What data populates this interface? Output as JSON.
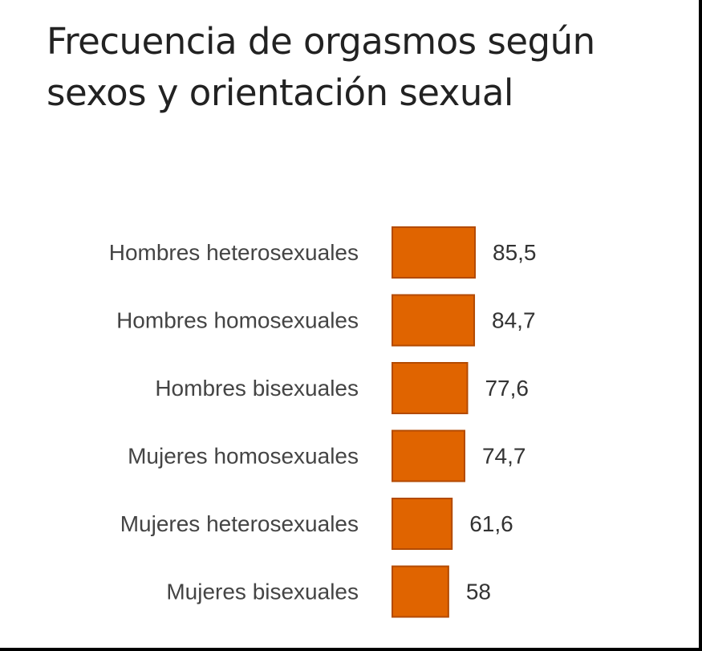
{
  "chart_data": {
    "type": "bar",
    "orientation": "horizontal",
    "title": "Frecuencia de orgasmos según sexos y orientación sexual",
    "categories": [
      "Hombres heterosexuales",
      "Hombres homosexuales",
      "Hombres bisexuales",
      "Mujeres homosexuales",
      "Mujeres heterosexuales",
      "Mujeres bisexuales"
    ],
    "values": [
      85.5,
      84.7,
      77.6,
      74.7,
      61.6,
      58
    ],
    "value_labels": [
      "85,5",
      "84,7",
      "77,6",
      "74,7",
      "61,6",
      "58"
    ],
    "xlim": [
      0,
      85.5
    ],
    "grid": false,
    "legend": "none",
    "bar_color": "#E06400",
    "bar_edge_color": "#B34A00"
  }
}
